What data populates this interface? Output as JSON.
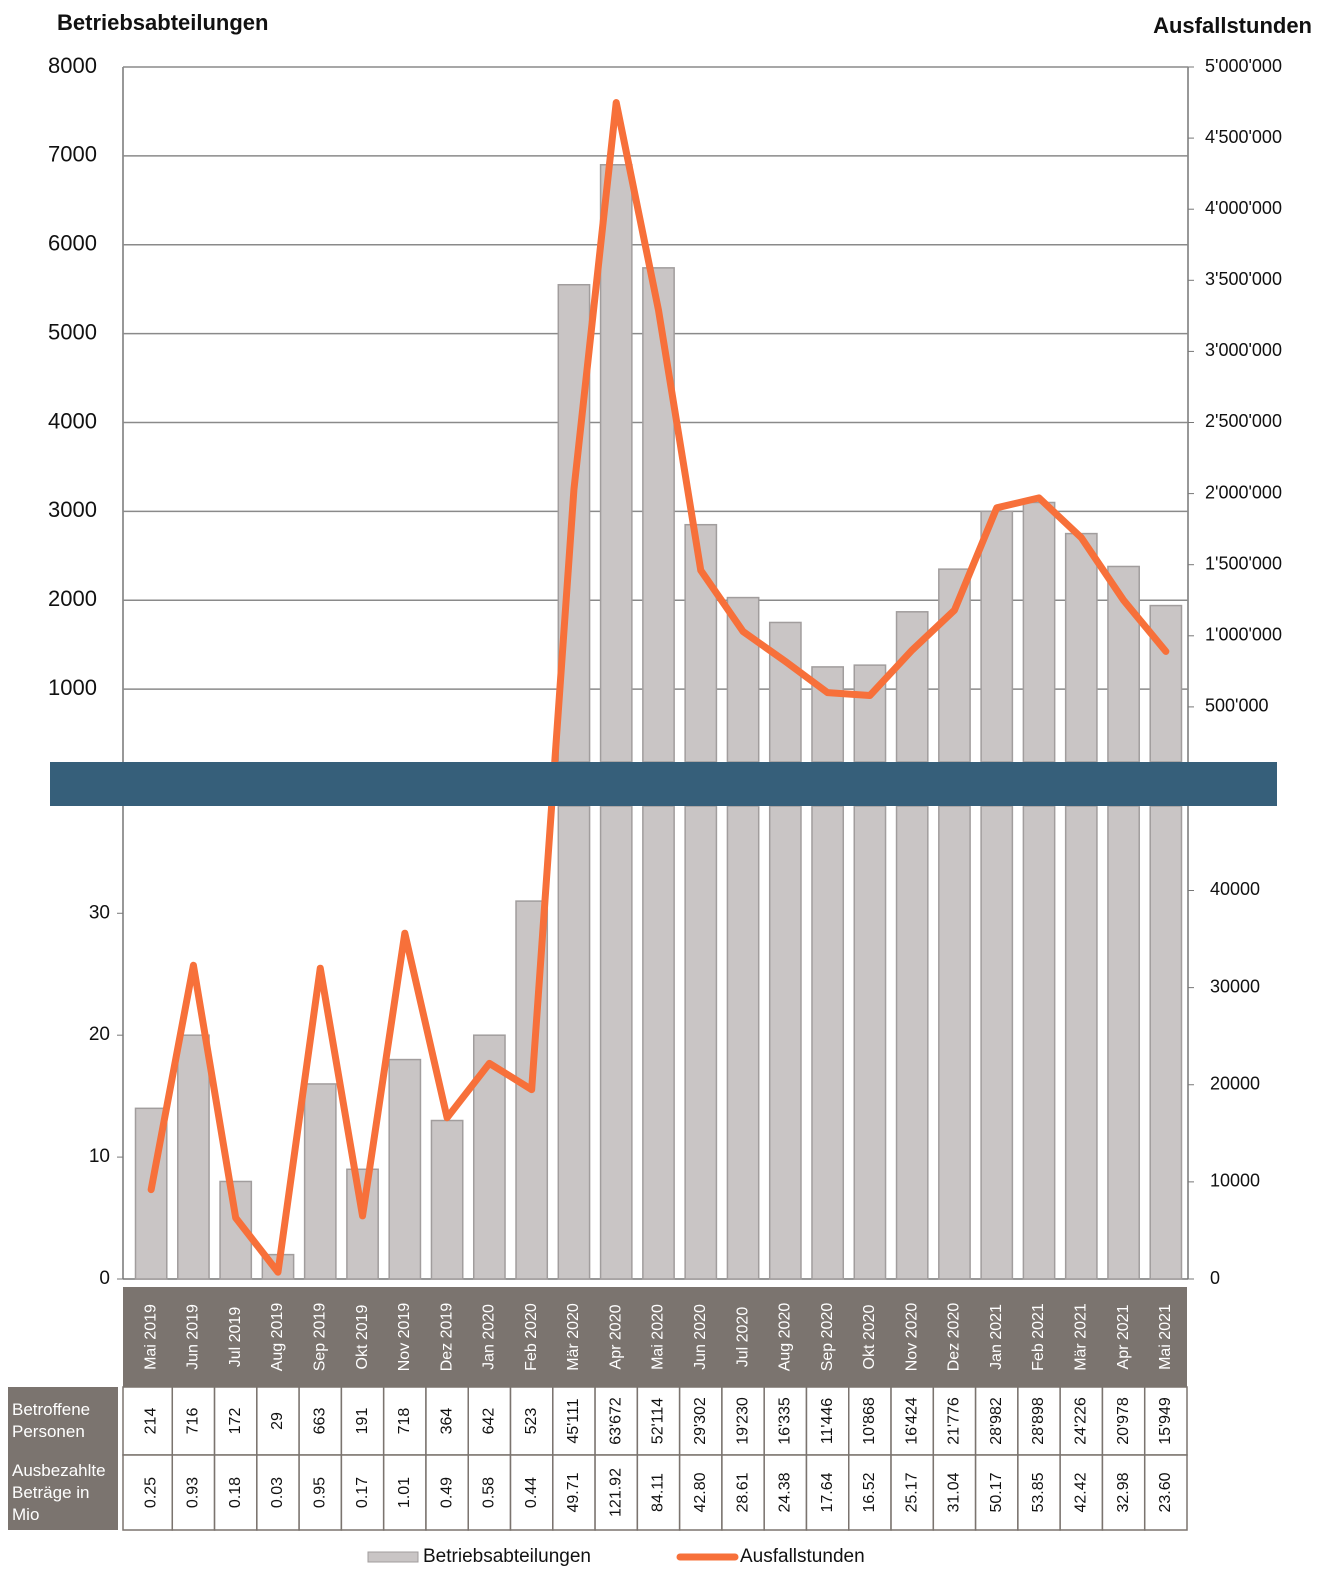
{
  "chart_data": {
    "type": "bar",
    "y_label": "Betriebsabteilungen",
    "y2_label": "Ausfallstunden",
    "categories": [
      "Mai 2019",
      "Jun 2019",
      "Jul 2019",
      "Aug 2019",
      "Sep 2019",
      "Okt 2019",
      "Nov 2019",
      "Dez 2019",
      "Jan 2020",
      "Feb 2020",
      "Mär 2020",
      "Apr 2020",
      "Mai 2020",
      "Jun 2020",
      "Jul 2020",
      "Aug 2020",
      "Sep 2020",
      "Okt 2020",
      "Nov 2020",
      "Dez 2020",
      "Jan 2021",
      "Feb 2021",
      "Mär 2021",
      "Apr 2021",
      "Mai 2021"
    ],
    "series": [
      {
        "name": "Betriebsabteilungen",
        "type": "bar",
        "color": "#c9c5c5",
        "values": [
          14,
          20,
          8,
          2,
          16,
          9,
          18,
          13,
          20,
          31,
          5550,
          6900,
          5740,
          2850,
          2030,
          1750,
          1250,
          1270,
          1870,
          2350,
          3000,
          3100,
          2750,
          2380,
          1940
        ]
      },
      {
        "name": "Ausfallstunden",
        "type": "line",
        "axis": "y2",
        "color": "#f7703a",
        "values": [
          9200,
          32300,
          6300,
          700,
          32000,
          6500,
          35600,
          16600,
          22200,
          19500,
          2030000,
          4750000,
          3290000,
          1460000,
          1030000,
          820000,
          600000,
          580000,
          900000,
          1180000,
          1900000,
          1970000,
          1690000,
          1250000,
          890000
        ]
      }
    ],
    "panels": [
      {
        "ylim": [
          180,
          8000
        ],
        "yticks": [
          1000,
          2000,
          3000,
          4000,
          5000,
          6000,
          7000,
          8000
        ],
        "grid": true,
        "y2lim": [
          112500,
          5000000
        ],
        "y2ticks": [
          {
            "value": 500000,
            "label": "500'000"
          },
          {
            "value": 1000000,
            "label": "1'000'000"
          },
          {
            "value": 1500000,
            "label": "1'500'000"
          },
          {
            "value": 2000000,
            "label": "2'000'000"
          },
          {
            "value": 2500000,
            "label": "2'500'000"
          },
          {
            "value": 3000000,
            "label": "3'000'000"
          },
          {
            "value": 3500000,
            "label": "3'500'000"
          },
          {
            "value": 4000000,
            "label": "4'000'000"
          },
          {
            "value": 4500000,
            "label": "4'500'000"
          },
          {
            "value": 5000000,
            "label": "5'000'000"
          }
        ]
      },
      {
        "ylim": [
          0,
          38.8
        ],
        "yticks": [
          0,
          10,
          20,
          30
        ],
        "grid": false,
        "y2lim": [
          0,
          48700
        ],
        "y2ticks": [
          0,
          10000,
          20000,
          30000,
          40000
        ]
      }
    ],
    "table": {
      "rows": [
        {
          "label": "Betroffene Personen",
          "values": [
            "214",
            "716",
            "172",
            "29",
            "663",
            "191",
            "718",
            "364",
            "642",
            "523",
            "45'111",
            "63'672",
            "52'114",
            "29'302",
            "19'230",
            "16'335",
            "11'446",
            "10'868",
            "16'424",
            "21'776",
            "28'982",
            "28'898",
            "24'226",
            "20'978",
            "15'949"
          ]
        },
        {
          "label": "Ausbezahlte Beträge in Mio",
          "values": [
            "0.25",
            "0.93",
            "0.18",
            "0.03",
            "0.95",
            "0.17",
            "1.01",
            "0.49",
            "0.58",
            "0.44",
            "49.71",
            "121.92",
            "84.11",
            "42.80",
            "28.61",
            "24.38",
            "17.64",
            "16.52",
            "25.17",
            "31.04",
            "50.17",
            "53.85",
            "42.42",
            "32.98",
            "23.60"
          ]
        }
      ]
    }
  }
}
